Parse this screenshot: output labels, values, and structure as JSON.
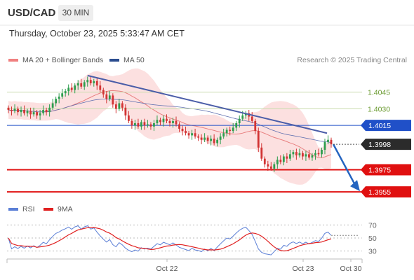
{
  "header": {
    "symbol": "USD/CAD",
    "timeframe": "30 MIN"
  },
  "datetime": "Thursday, October 23, 2025 5:33:47 AM CET",
  "legend": {
    "bollinger": {
      "label": "MA 20 + Bollinger Bands",
      "color": "#f08080"
    },
    "ma50": {
      "label": "MA 50",
      "color": "#2b4d8f"
    }
  },
  "credit": "Research © 2025 Trading Central",
  "rsi_legend": {
    "rsi": {
      "label": "RSI",
      "color": "#5b7fd6"
    },
    "ma": {
      "label": "9MA",
      "color": "#e02020"
    }
  },
  "chart_data": {
    "type": "candlestick",
    "ylim": [
      1.3945,
      1.4065
    ],
    "current_price": "1.3998",
    "levels": [
      {
        "value": 1.4045,
        "label": "1.4045",
        "style": "resistance-light",
        "color": "#8bb85a"
      },
      {
        "value": 1.403,
        "label": "1.4030",
        "style": "resistance-light",
        "color": "#8bb85a"
      },
      {
        "value": 1.4015,
        "label": "1.4015",
        "style": "pivot",
        "color": "#2050c8"
      },
      {
        "value": 1.3975,
        "label": "1.3975",
        "style": "support",
        "color": "#e01010"
      },
      {
        "value": 1.3955,
        "label": "1.3955",
        "style": "support",
        "color": "#e01010"
      }
    ],
    "x_labels": [
      "Oct 22",
      "Oct 23",
      "Oct 30"
    ],
    "close": [
      1.4029,
      1.4028,
      1.403,
      1.4027,
      1.4029,
      1.4026,
      1.4028,
      1.4025,
      1.4027,
      1.4024,
      1.4026,
      1.4029,
      1.4027,
      1.4031,
      1.4035,
      1.4039,
      1.4041,
      1.4044,
      1.4046,
      1.4049,
      1.4047,
      1.4051,
      1.4053,
      1.405,
      1.4054,
      1.4056,
      1.4053,
      1.4055,
      1.4051,
      1.4047,
      1.4043,
      1.4039,
      1.4042,
      1.4034,
      1.403,
      1.4035,
      1.4031,
      1.4024,
      1.4019,
      1.4015,
      1.4017,
      1.4014,
      1.4018,
      1.4015,
      1.4016,
      1.4014,
      1.4017,
      1.402,
      1.4018,
      1.4021,
      1.4019,
      1.4017,
      1.4019,
      1.4016,
      1.4012,
      1.401,
      1.4008,
      1.4006,
      1.4008,
      1.4005,
      1.4004,
      1.4002,
      1.4004,
      1.4001,
      1.4003,
      1.3999,
      1.4002,
      1.4005,
      1.4008,
      1.4011,
      1.401,
      1.4013,
      1.4017,
      1.4021,
      1.4024,
      1.4026,
      1.4023,
      1.4019,
      1.401,
      1.3995,
      1.3985,
      1.398,
      1.3978,
      1.3976,
      1.398,
      1.3984,
      1.3982,
      1.3987,
      1.3985,
      1.3989,
      1.3991,
      1.3988,
      1.399,
      1.3987,
      1.3989,
      1.3986,
      1.3988,
      1.399,
      1.3989,
      1.3993,
      1.4,
      1.4002,
      1.3998
    ],
    "rsi": {
      "ylim": [
        20,
        80
      ],
      "ticks": [
        70,
        50,
        30
      ],
      "ma_period": 9
    }
  }
}
